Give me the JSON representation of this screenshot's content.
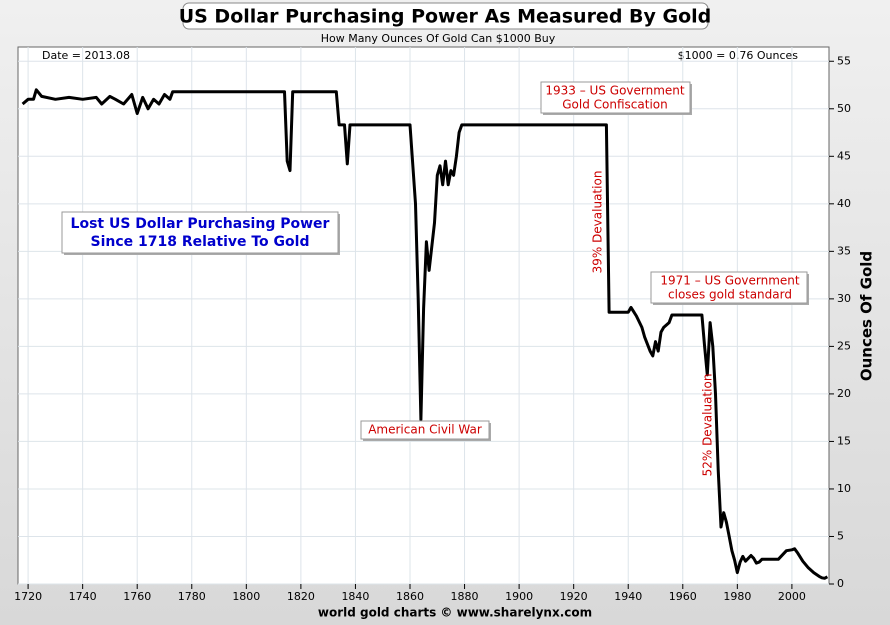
{
  "chart_data": {
    "type": "line",
    "title": "US Dollar Purchasing Power As Measured By Gold",
    "subtitle": "How Many Ounces Of Gold Can $1000 Buy",
    "y_label": "Ounces Of Gold",
    "source": "world gold charts © www.sharelynx.com",
    "top_left_text": "Date = 2013.08",
    "top_right_text": "$1000 = 0.76 Ounces",
    "color": "#000000",
    "grid": true,
    "xlim": [
      1716.3,
      2013.6
    ],
    "ylim": [
      0,
      56.5
    ],
    "xticks": [
      1720,
      1740,
      1760,
      1780,
      1800,
      1820,
      1840,
      1860,
      1880,
      1900,
      1920,
      1940,
      1960,
      1980,
      2000
    ],
    "yticks": [
      0,
      5,
      10,
      15,
      20,
      25,
      30,
      35,
      40,
      45,
      50,
      55
    ],
    "annotations": [
      {
        "lines": [
          "Lost US Dollar Purchasing Power",
          "Since 1718 Relative To Gold"
        ],
        "color": "#0000cc"
      },
      {
        "lines": [
          "1933 – US Government",
          "Gold Confiscation"
        ],
        "color": "#cc0000"
      },
      {
        "lines": [
          "1971 – US Government",
          "closes gold standard"
        ],
        "color": "#cc0000"
      },
      {
        "lines": [
          "American Civil War"
        ],
        "color": "#cc0000"
      },
      {
        "lines": [
          "39% Devaluation"
        ],
        "color": "#cc0000"
      },
      {
        "lines": [
          "52% Devaluation"
        ],
        "color": "#cc0000"
      }
    ],
    "x": [
      1718,
      1720,
      1722,
      1723,
      1725,
      1730,
      1735,
      1740,
      1745,
      1747,
      1750,
      1752,
      1755,
      1758,
      1760,
      1762,
      1764,
      1766,
      1768,
      1770,
      1772,
      1773,
      1780,
      1790,
      1800,
      1810,
      1814,
      1815,
      1816,
      1817,
      1820,
      1833,
      1834,
      1836,
      1837,
      1838,
      1850,
      1860,
      1862,
      1863,
      1864,
      1865,
      1866,
      1867,
      1868,
      1869,
      1870,
      1871,
      1872,
      1873,
      1874,
      1875,
      1876,
      1877,
      1878,
      1879,
      1900,
      1932,
      1933,
      1940,
      1941,
      1943,
      1945,
      1946,
      1948,
      1949,
      1950,
      1951,
      1952,
      1953,
      1955,
      1956,
      1960,
      1967,
      1968,
      1969,
      1970,
      1971,
      1972,
      1973,
      1974,
      1975,
      1976,
      1977,
      1978,
      1979,
      1980,
      1981,
      1982,
      1983,
      1984,
      1985,
      1986,
      1987,
      1988,
      1989,
      1990,
      1995,
      1998,
      2000,
      2001,
      2002,
      2004,
      2006,
      2008,
      2010,
      2011,
      2012,
      2013
    ],
    "values": [
      50.5,
      51,
      51,
      52,
      51.3,
      51,
      51.2,
      51,
      51.2,
      50.5,
      51.3,
      51,
      50.5,
      51.5,
      49.5,
      51.2,
      50,
      51,
      50.5,
      51.5,
      51,
      51.8,
      51.8,
      51.8,
      51.8,
      51.8,
      51.8,
      44.5,
      43.5,
      51.8,
      51.8,
      51.8,
      48.3,
      48.3,
      44.2,
      48.3,
      48.3,
      48.3,
      40,
      30,
      17.3,
      29,
      36,
      33,
      35.5,
      38,
      43,
      44,
      42,
      44.5,
      42,
      43.5,
      43,
      45,
      47.5,
      48.3,
      48.3,
      48.3,
      28.6,
      28.6,
      29.1,
      28.2,
      27,
      26,
      24.5,
      24,
      25.5,
      24.5,
      26.5,
      27,
      27.5,
      28.3,
      28.3,
      28.3,
      25,
      22,
      27.5,
      25,
      20,
      12,
      6,
      7.5,
      6.5,
      5,
      3.5,
      2.5,
      1.2,
      2.3,
      2.9,
      2.4,
      2.7,
      3.0,
      2.7,
      2.2,
      2.3,
      2.6,
      2.6,
      2.6,
      3.5,
      3.6,
      3.7,
      3.3,
      2.4,
      1.7,
      1.2,
      0.8,
      0.65,
      0.6,
      0.76
    ]
  }
}
